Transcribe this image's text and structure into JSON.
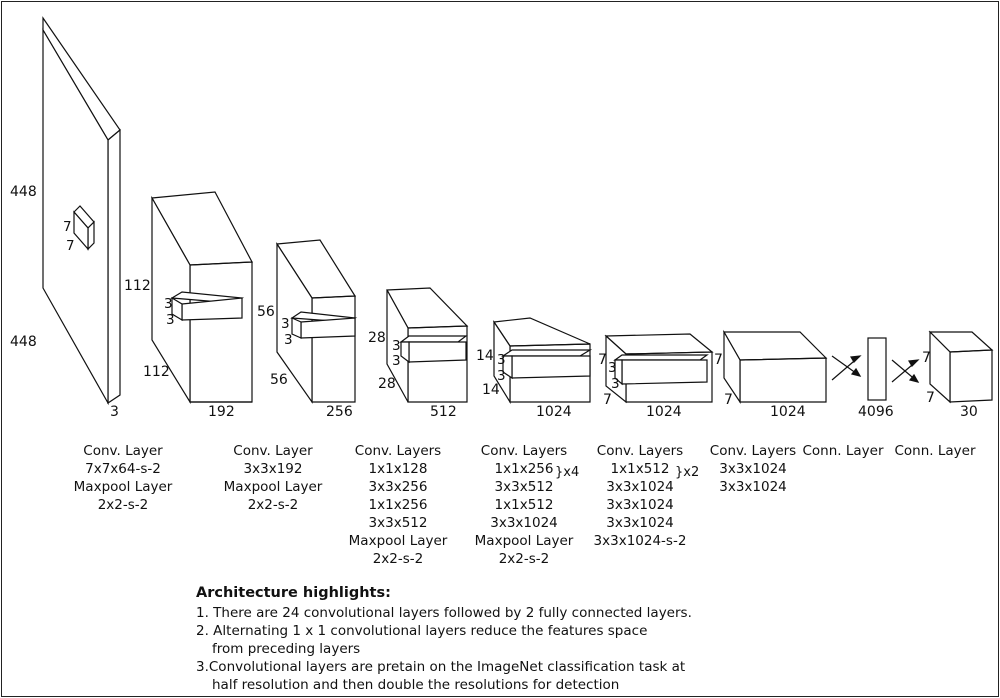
{
  "layers": [
    {
      "height": "448",
      "width": "448",
      "depth": "3",
      "kernel": [
        "7",
        "7"
      ],
      "caption": [
        "Conv. Layer",
        "7x7x64-s-2",
        "Maxpool Layer",
        "2x2-s-2"
      ]
    },
    {
      "height": "112",
      "width": "112",
      "depth": "192",
      "kernel": [
        "3",
        "3"
      ],
      "caption": [
        "Conv. Layer",
        "3x3x192",
        "Maxpool Layer",
        "2x2-s-2"
      ]
    },
    {
      "height": "56",
      "width": "56",
      "depth": "256",
      "kernel": [
        "3",
        "3"
      ],
      "caption": [
        "Conv. Layers",
        "1x1x128",
        "3x3x256",
        "1x1x256",
        "3x3x512",
        "Maxpool Layer",
        "2x2-s-2"
      ]
    },
    {
      "height": "28",
      "width": "28",
      "depth": "512",
      "kernel": [
        "3",
        "3"
      ],
      "caption": [
        "Conv. Layers",
        "1x1x256",
        "3x3x512",
        "1x1x512",
        "3x3x1024",
        "Maxpool Layer",
        "2x2-s-2"
      ],
      "brace": "}x4"
    },
    {
      "height": "14",
      "width": "14",
      "depth": "1024",
      "kernel": [
        "3",
        "3"
      ],
      "caption": [
        "Conv. Layers",
        "1x1x512",
        "3x3x1024",
        "3x3x1024",
        "3x3x1024",
        "3x3x1024-s-2"
      ],
      "brace": "}x2"
    },
    {
      "height": "7",
      "width": "7",
      "depth": "1024",
      "caption": [
        "Conv. Layers",
        "3x3x1024",
        "3x3x1024"
      ]
    },
    {
      "depth": "4096",
      "caption": [
        "Conn. Layer"
      ]
    },
    {
      "height": "7",
      "width": "7",
      "depth": "30",
      "caption": [
        "Conn. Layer"
      ]
    }
  ],
  "notes": {
    "heading": "Architecture highlights:",
    "items": [
      [
        "1. There are 24 convolutional layers followed by 2 fully connected layers."
      ],
      [
        "2.  Alternating 1 x 1 convolutional layers reduce the features space",
        "from preceding layers"
      ],
      [
        "3.Convolutional layers are pretain on the ImageNet classification task at",
        "half resolution and then double the resolutions for detection"
      ]
    ]
  }
}
